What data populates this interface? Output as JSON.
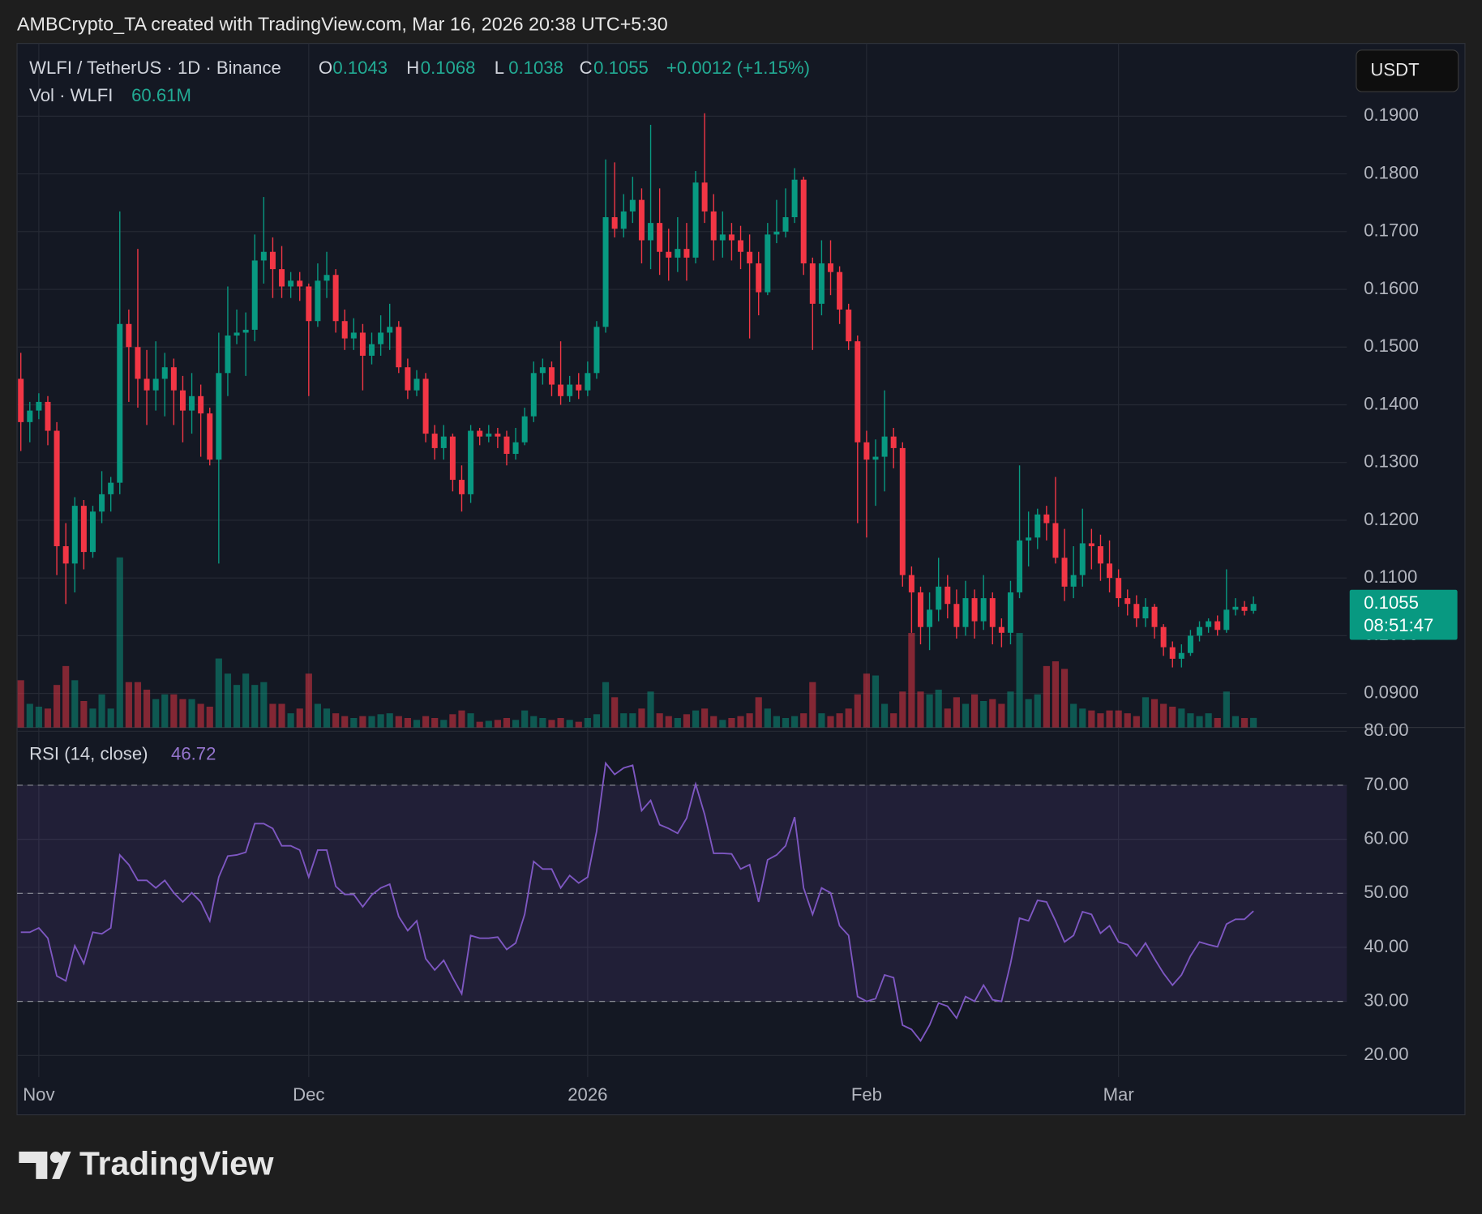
{
  "header": {
    "title": "AMBCrypto_TA created with TradingView.com, Mar 16, 2026 20:38 UTC+5:30"
  },
  "chart_data": {
    "type": "candlestick",
    "title": "WLFI / TetherUS · 1D · Binance",
    "ohlc_labels": [
      "O",
      "H",
      "L",
      "C"
    ],
    "change": "+0.0012 (+1.15%)",
    "currency": "USDT",
    "countdown": "08:51:47",
    "categories": [
      null,
      null,
      "Nov",
      null,
      null,
      null,
      null,
      null,
      null,
      null,
      null,
      null,
      null,
      null,
      null,
      null,
      null,
      null,
      null,
      null,
      null,
      null,
      null,
      null,
      null,
      null,
      null,
      null,
      null,
      null,
      null,
      null,
      "Dec",
      null,
      null,
      null,
      null,
      null,
      null,
      null,
      null,
      null,
      null,
      null,
      null,
      null,
      null,
      null,
      null,
      null,
      null,
      null,
      null,
      null,
      null,
      null,
      null,
      null,
      null,
      null,
      null,
      null,
      null,
      "2026",
      null,
      null,
      null,
      null,
      null,
      null,
      null,
      null,
      null,
      null,
      null,
      null,
      null,
      null,
      null,
      null,
      null,
      null,
      null,
      null,
      null,
      null,
      null,
      null,
      null,
      null,
      null,
      null,
      null,
      null,
      "Feb",
      null,
      null,
      null,
      null,
      null,
      null,
      null,
      null,
      null,
      null,
      null,
      null,
      null,
      null,
      null,
      null,
      null,
      null,
      null,
      null,
      null,
      null,
      null,
      null,
      null,
      null,
      null,
      "Mar",
      null,
      null,
      null,
      null,
      null,
      null,
      null,
      null,
      null,
      null,
      null,
      null,
      null,
      null,
      null
    ],
    "open": [
      0.1445,
      0.137,
      0.139,
      0.1405,
      0.1355,
      0.1155,
      0.1125,
      0.1225,
      0.1145,
      0.1215,
      0.1245,
      0.1265,
      0.154,
      0.15,
      0.1445,
      0.1425,
      0.1445,
      0.1465,
      0.1425,
      0.139,
      0.1415,
      0.1385,
      0.1305,
      0.1455,
      0.152,
      0.1525,
      0.153,
      0.165,
      0.1665,
      0.1635,
      0.1605,
      0.1615,
      0.1605,
      0.1545,
      0.1615,
      0.1625,
      0.1545,
      0.1515,
      0.1525,
      0.1485,
      0.1505,
      0.1525,
      0.1535,
      0.1465,
      0.1425,
      0.1445,
      0.135,
      0.1325,
      0.1345,
      0.127,
      0.1245,
      0.1355,
      0.1345,
      0.135,
      0.1345,
      0.1315,
      0.1335,
      0.138,
      0.1455,
      0.1465,
      0.1435,
      0.1415,
      0.1435,
      0.1425,
      0.1455,
      0.1535,
      0.1725,
      0.1705,
      0.1735,
      0.1755,
      0.1685,
      0.1715,
      0.1665,
      0.1655,
      0.167,
      0.1655,
      0.1785,
      0.1735,
      0.1685,
      0.1695,
      0.1685,
      0.1665,
      0.1645,
      0.1595,
      0.1695,
      0.17,
      0.1725,
      0.179,
      0.1645,
      0.1575,
      0.1645,
      0.163,
      0.1565,
      0.151,
      0.1335,
      0.1305,
      0.131,
      0.1345,
      0.1325,
      0.1105,
      0.1075,
      0.1015,
      0.1045,
      0.1085,
      0.1055,
      0.1015,
      0.1065,
      0.1025,
      0.1065,
      0.1015,
      0.1005,
      0.1075,
      0.1165,
      0.117,
      0.121,
      0.1195,
      0.1135,
      0.1085,
      0.1105,
      0.116,
      0.1155,
      0.1125,
      0.11,
      0.1065,
      0.1055,
      0.103,
      0.105,
      0.1015,
      0.098,
      0.096,
      0.097,
      0.1,
      0.1015,
      0.1025,
      0.101,
      0.1045,
      0.105,
      0.1043
    ],
    "high": [
      0.149,
      0.1405,
      0.142,
      0.1415,
      0.137,
      0.1195,
      0.124,
      0.1235,
      0.1225,
      0.1285,
      0.1275,
      0.1735,
      0.1565,
      0.167,
      0.1495,
      0.151,
      0.149,
      0.148,
      0.145,
      0.1455,
      0.1435,
      0.1395,
      0.1525,
      0.1605,
      0.1565,
      0.156,
      0.1695,
      0.176,
      0.169,
      0.1675,
      0.163,
      0.163,
      0.161,
      0.1645,
      0.1665,
      0.1635,
      0.1565,
      0.155,
      0.154,
      0.1525,
      0.1555,
      0.1575,
      0.1545,
      0.148,
      0.146,
      0.1455,
      0.1365,
      0.1365,
      0.135,
      0.1295,
      0.1365,
      0.136,
      0.1365,
      0.136,
      0.1355,
      0.136,
      0.1395,
      0.1475,
      0.148,
      0.1475,
      0.151,
      0.145,
      0.1455,
      0.1475,
      0.1545,
      0.1825,
      0.182,
      0.1765,
      0.1795,
      0.1775,
      0.1885,
      0.1775,
      0.1705,
      0.1725,
      0.1715,
      0.1805,
      0.1905,
      0.1765,
      0.1735,
      0.1715,
      0.171,
      0.1695,
      0.1665,
      0.1715,
      0.1755,
      0.1775,
      0.181,
      0.1795,
      0.1655,
      0.1685,
      0.1685,
      0.164,
      0.1575,
      0.152,
      0.1355,
      0.134,
      0.1425,
      0.136,
      0.1335,
      0.112,
      0.1085,
      0.1075,
      0.1135,
      0.1105,
      0.108,
      0.1095,
      0.108,
      0.1105,
      0.1075,
      0.103,
      0.1095,
      0.1295,
      0.1215,
      0.122,
      0.1225,
      0.1275,
      0.1185,
      0.1155,
      0.122,
      0.1185,
      0.1175,
      0.1165,
      0.1115,
      0.108,
      0.107,
      0.1065,
      0.1055,
      0.102,
      0.099,
      0.0985,
      0.101,
      0.1025,
      0.103,
      0.1035,
      0.1115,
      0.1065,
      0.106,
      0.1068
    ],
    "low": [
      0.132,
      0.1335,
      0.1375,
      0.133,
      0.1105,
      0.1055,
      0.1075,
      0.1115,
      0.1135,
      0.1195,
      0.1215,
      0.1245,
      0.1405,
      0.1395,
      0.1365,
      0.139,
      0.138,
      0.1365,
      0.1335,
      0.135,
      0.131,
      0.1295,
      0.1125,
      0.1415,
      0.1505,
      0.145,
      0.151,
      0.161,
      0.1585,
      0.1585,
      0.1585,
      0.158,
      0.1415,
      0.1535,
      0.1585,
      0.1525,
      0.1495,
      0.1495,
      0.1425,
      0.147,
      0.1485,
      0.1495,
      0.1455,
      0.141,
      0.1415,
      0.1335,
      0.1305,
      0.1305,
      0.125,
      0.1215,
      0.123,
      0.133,
      0.1335,
      0.1325,
      0.1295,
      0.1305,
      0.133,
      0.137,
      0.1435,
      0.1415,
      0.14,
      0.1405,
      0.141,
      0.1415,
      0.1445,
      0.1525,
      0.169,
      0.169,
      0.1715,
      0.1645,
      0.1635,
      0.1625,
      0.1615,
      0.163,
      0.1615,
      0.1645,
      0.1715,
      0.165,
      0.1655,
      0.165,
      0.1635,
      0.1515,
      0.1555,
      0.159,
      0.168,
      0.169,
      0.1715,
      0.1625,
      0.1495,
      0.1555,
      0.159,
      0.154,
      0.1495,
      0.1195,
      0.117,
      0.1225,
      0.125,
      0.129,
      0.1085,
      0.1005,
      0.0985,
      0.0975,
      0.1025,
      0.103,
      0.0995,
      0.1,
      0.0995,
      0.101,
      0.0985,
      0.098,
      0.0985,
      0.1065,
      0.112,
      0.115,
      0.1165,
      0.1125,
      0.106,
      0.1065,
      0.1085,
      0.1115,
      0.1095,
      0.1075,
      0.105,
      0.1035,
      0.1015,
      0.1015,
      0.0995,
      0.0965,
      0.0945,
      0.0945,
      0.0965,
      0.099,
      0.1005,
      0.1,
      0.1005,
      0.1035,
      0.1035,
      0.1038
    ],
    "close": [
      0.137,
      0.139,
      0.1405,
      0.1355,
      0.1155,
      0.1125,
      0.1225,
      0.1145,
      0.1215,
      0.1245,
      0.1265,
      0.154,
      0.15,
      0.1445,
      0.1425,
      0.1445,
      0.1465,
      0.1425,
      0.139,
      0.1415,
      0.1385,
      0.1305,
      0.1455,
      0.152,
      0.1525,
      0.153,
      0.165,
      0.1665,
      0.1635,
      0.1605,
      0.1615,
      0.1605,
      0.1545,
      0.1615,
      0.1625,
      0.1545,
      0.1515,
      0.1525,
      0.1485,
      0.1505,
      0.1525,
      0.1535,
      0.1465,
      0.1425,
      0.1445,
      0.135,
      0.1325,
      0.1345,
      0.127,
      0.1245,
      0.1355,
      0.1345,
      0.135,
      0.1345,
      0.1315,
      0.1335,
      0.138,
      0.1455,
      0.1465,
      0.1435,
      0.1415,
      0.1435,
      0.1425,
      0.1455,
      0.1535,
      0.1725,
      0.1705,
      0.1735,
      0.1755,
      0.1685,
      0.1715,
      0.1665,
      0.1655,
      0.167,
      0.1655,
      0.1785,
      0.1735,
      0.1685,
      0.1695,
      0.1685,
      0.1665,
      0.1645,
      0.1595,
      0.1695,
      0.17,
      0.1725,
      0.179,
      0.1645,
      0.1575,
      0.1645,
      0.163,
      0.1565,
      0.151,
      0.1335,
      0.1305,
      0.131,
      0.1345,
      0.1325,
      0.1105,
      0.1075,
      0.1015,
      0.1045,
      0.1085,
      0.1055,
      0.1015,
      0.1065,
      0.1025,
      0.1065,
      0.1015,
      0.1005,
      0.1075,
      0.1165,
      0.117,
      0.121,
      0.1195,
      0.1135,
      0.1085,
      0.1105,
      0.116,
      0.1155,
      0.1125,
      0.11,
      0.1065,
      0.1055,
      0.103,
      0.105,
      0.1015,
      0.098,
      0.096,
      0.097,
      0.1,
      0.1015,
      0.1025,
      0.101,
      0.1045,
      0.105,
      0.1043,
      0.1055
    ],
    "up_color": "#089981",
    "down_color": "#f23645",
    "ylim": [
      0.0841,
      0.2026
    ],
    "yticks": [
      {
        "value": 0.09,
        "label": "0.0900"
      },
      {
        "value": 0.1,
        "label": "0.1000"
      },
      {
        "value": 0.11,
        "label": "0.1100"
      },
      {
        "value": 0.12,
        "label": "0.1200"
      },
      {
        "value": 0.13,
        "label": "0.1300"
      },
      {
        "value": 0.14,
        "label": "0.1400"
      },
      {
        "value": 0.15,
        "label": "0.1500"
      },
      {
        "value": 0.16,
        "label": "0.1600"
      },
      {
        "value": 0.17,
        "label": "0.1700"
      },
      {
        "value": 0.18,
        "label": "0.1800"
      },
      {
        "value": 0.19,
        "label": "0.1900"
      }
    ],
    "grid": true,
    "volume": {
      "name": "Vol · WLFI",
      "last_label": "60.61M",
      "ylim": [
        0,
        4344
      ],
      "values": [
        300,
        150,
        132,
        120,
        270,
        390,
        300,
        168,
        120,
        210,
        120,
        1080,
        288,
        288,
        240,
        180,
        210,
        210,
        180,
        180,
        150,
        132,
        438,
        342,
        270,
        342,
        270,
        288,
        150,
        150,
        90,
        120,
        342,
        150,
        120,
        90,
        72,
        60,
        72,
        72,
        84,
        90,
        72,
        60,
        48,
        72,
        60,
        48,
        84,
        108,
        90,
        36,
        42,
        48,
        60,
        48,
        108,
        72,
        60,
        48,
        60,
        48,
        36,
        60,
        84,
        288,
        192,
        90,
        90,
        120,
        228,
        90,
        72,
        60,
        84,
        108,
        120,
        72,
        48,
        60,
        72,
        90,
        192,
        120,
        72,
        60,
        72,
        90,
        288,
        90,
        72,
        90,
        120,
        210,
        342,
        330,
        150,
        90,
        228,
        600,
        228,
        210,
        240,
        120,
        192,
        150,
        210,
        168,
        180,
        150,
        228,
        600,
        180,
        210,
        390,
        420,
        372,
        150,
        120,
        108,
        90,
        108,
        108,
        90,
        72,
        192,
        180,
        150,
        132,
        120,
        90,
        72,
        90,
        60,
        228,
        72,
        60,
        60.61
      ]
    },
    "rsi": {
      "name": "RSI (14, close)",
      "color": "#7e57c2",
      "ylim": [
        16,
        80.7
      ],
      "yticks": [
        {
          "value": 20,
          "label": "20.00"
        },
        {
          "value": 30,
          "label": "30.00"
        },
        {
          "value": 40,
          "label": "40.00"
        },
        {
          "value": 50,
          "label": "50.00"
        },
        {
          "value": 60,
          "label": "60.00"
        },
        {
          "value": 70,
          "label": "70.00"
        },
        {
          "value": 80,
          "label": "80.00"
        }
      ],
      "levels": [
        70,
        50,
        30
      ],
      "values": [
        42.8,
        42.8,
        43.6,
        41.7,
        34.7,
        33.8,
        40.3,
        37,
        42.8,
        42.5,
        43.6,
        57.1,
        55.3,
        52.4,
        52.4,
        51,
        52.4,
        50.1,
        48.4,
        50.1,
        48.4,
        44.9,
        53,
        56.9,
        57.1,
        57.6,
        62.9,
        62.9,
        62,
        58.8,
        58.8,
        58,
        53,
        58,
        58,
        51.3,
        49.8,
        49.8,
        47.5,
        49.7,
        51,
        51.7,
        45.7,
        43.1,
        44.9,
        37.9,
        35.8,
        37.6,
        34.4,
        31.4,
        42.2,
        41.7,
        41.7,
        41.9,
        39.6,
        40.8,
        46.1,
        55.9,
        54.5,
        54.5,
        51,
        53.3,
        51.9,
        53,
        61.5,
        74.1,
        72,
        73.2,
        73.7,
        65.3,
        67.2,
        62.7,
        62,
        61.1,
        63.9,
        70.2,
        64.6,
        57.4,
        57.4,
        57.3,
        54.5,
        55.3,
        48.4,
        56.2,
        57.1,
        58.8,
        64.1,
        51,
        46.1,
        51,
        50.1,
        44,
        42.2,
        30.9,
        30,
        30.5,
        34.9,
        34.4,
        25.6,
        24.8,
        22.7,
        25.6,
        29.7,
        29.1,
        26.9,
        30.9,
        30,
        33,
        30.3,
        30,
        37,
        45.4,
        44.9,
        48.7,
        48.4,
        44.9,
        41,
        42.2,
        46.6,
        46.1,
        42.6,
        44,
        41,
        40.5,
        38.4,
        40.8,
        37.9,
        35.2,
        33,
        34.9,
        38.4,
        41,
        40.5,
        40.1,
        44.3,
        45.2,
        45.2,
        46.72
      ]
    }
  },
  "footer": {
    "brand": "TradingView"
  }
}
